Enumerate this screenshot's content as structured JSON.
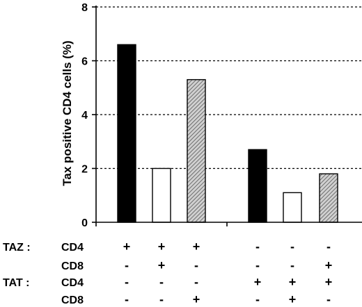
{
  "chart_data": {
    "type": "bar",
    "title": "",
    "xlabel": "",
    "ylabel": "Tax positive CD4 cells (%)",
    "ylim": [
      0,
      8
    ],
    "yticks": [
      "0",
      "2",
      "4",
      "6",
      "8"
    ],
    "grid": true,
    "grid_values": [
      2,
      4,
      6,
      8
    ],
    "groups": 2,
    "values": [
      6.6,
      2.0,
      5.3,
      2.7,
      1.1,
      1.8
    ],
    "fills": [
      "black",
      "white",
      "hatched",
      "black",
      "white",
      "hatched"
    ],
    "colors": {
      "solid": "#000000",
      "open": "#ffffff",
      "hatch": "#555555"
    },
    "treatment_table": {
      "rows": [
        {
          "group": "TAZ :",
          "label": "CD4",
          "symbols": [
            "+",
            "+",
            "+",
            "-",
            "-",
            "-"
          ]
        },
        {
          "group": "",
          "label": "CD8",
          "symbols": [
            "-",
            "+",
            "-",
            "-",
            "-",
            "+"
          ]
        },
        {
          "group": "TAT :",
          "label": "CD4",
          "symbols": [
            "-",
            "-",
            "-",
            "+",
            "+",
            "+"
          ]
        },
        {
          "group": "",
          "label": "CD8",
          "symbols": [
            "-",
            "-",
            "+",
            "-",
            "+",
            "-"
          ]
        }
      ]
    }
  }
}
